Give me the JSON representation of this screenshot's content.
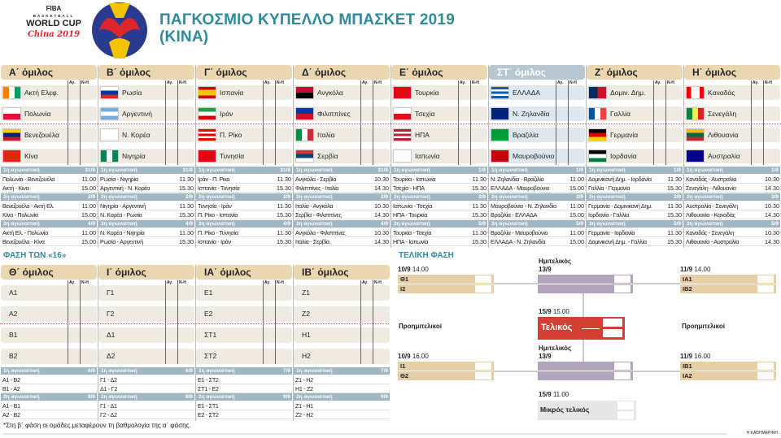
{
  "header": {
    "title_line1": "ΠΑΓΚΟΣΜΙΟ ΚΥΠΕΛΛΟ ΜΠΑΣΚΕΤ 2019",
    "title_line2": "(ΚΙΝΑ)",
    "logo": {
      "fiba": "FIBA",
      "basketball": "BASKETBALL",
      "world_cup": "WORLD CUP",
      "china": "China 2019"
    }
  },
  "colors": {
    "title": "#2f8a9a",
    "group_header": "#ead7b2",
    "schedule_header": "#9fb6c4",
    "final": "#d33f33",
    "semifinal": "#b2a4bc",
    "quarterfinal": "#e6cfa4"
  },
  "col_labels": {
    "wins": "Αγ.",
    "record": "Ν-Η"
  },
  "groups": [
    {
      "name": "Α΄ όμιλος",
      "teams": [
        {
          "name": "Ακτή Ελεφ.",
          "flag": {
            "dir": "v",
            "c": [
              "#f77f00",
              "#ffffff",
              "#009e60"
            ]
          }
        },
        {
          "name": "Πολωνία",
          "flag": {
            "dir": "h",
            "c": [
              "#ffffff",
              "#dc143c"
            ]
          }
        },
        {
          "name": "Βενεζουέλα",
          "flag": {
            "dir": "h",
            "c": [
              "#ffcc00",
              "#00247d",
              "#cf142b"
            ]
          }
        },
        {
          "name": "Κίνα",
          "flag": {
            "dir": "h",
            "c": [
              "#de2910"
            ]
          }
        }
      ],
      "rounds": [
        {
          "label": "1η αγωνιστική",
          "date": "31/8",
          "games": [
            [
              "Πολωνία - Βενεζουέλα",
              "11.00"
            ],
            [
              "Ακτή - Κίνα",
              "15.00"
            ]
          ]
        },
        {
          "label": "2η αγωνιστική",
          "date": "2/9",
          "games": [
            [
              "Βενεζουέλα - Ακτή Ελ.",
              "11.00"
            ],
            [
              "Κίνα - Πολωνία",
              "15.00"
            ]
          ]
        },
        {
          "label": "3η αγωνιστική",
          "date": "4/9",
          "games": [
            [
              "Ακτή Ελ. - Πολωνία",
              "11.00"
            ],
            [
              "Βενεζουέλα - Κίνα",
              "15.00"
            ]
          ]
        }
      ]
    },
    {
      "name": "Β΄ όμιλος",
      "teams": [
        {
          "name": "Ρωσία",
          "flag": {
            "dir": "h",
            "c": [
              "#ffffff",
              "#0039a6",
              "#d52b1e"
            ]
          }
        },
        {
          "name": "Αργεντινή",
          "flag": {
            "dir": "h",
            "c": [
              "#74acdf",
              "#ffffff",
              "#74acdf"
            ]
          }
        },
        {
          "name": "Ν. Κορέα",
          "flag": {
            "dir": "h",
            "c": [
              "#ffffff"
            ]
          }
        },
        {
          "name": "Νιγηρία",
          "flag": {
            "dir": "v",
            "c": [
              "#008751",
              "#ffffff",
              "#008751"
            ]
          }
        }
      ],
      "rounds": [
        {
          "label": "1η αγωνιστική",
          "date": "31/8",
          "games": [
            [
              "Ρωσία - Νιγηρία",
              "11.30"
            ],
            [
              "Αργεντινή - Ν. Κορέα",
              "15.30"
            ]
          ]
        },
        {
          "label": "2η αγωνιστική",
          "date": "2/9",
          "games": [
            [
              "Νιγηρία - Αργεντινή",
              "11.30"
            ],
            [
              "Ν. Κορέα - Ρωσία",
              "15.30"
            ]
          ]
        },
        {
          "label": "3η αγωνιστική",
          "date": "4/9",
          "games": [
            [
              "Ν. Κορέα - Νιγηρία",
              "11.30"
            ],
            [
              "Ρωσία - Αργεντινή",
              "15.30"
            ]
          ]
        }
      ]
    },
    {
      "name": "Γ΄ όμιλος",
      "teams": [
        {
          "name": "Ισπανία",
          "flag": {
            "dir": "h",
            "c": [
              "#c60b1e",
              "#ffc400",
              "#ffc400",
              "#c60b1e"
            ]
          }
        },
        {
          "name": "Ιράν",
          "flag": {
            "dir": "h",
            "c": [
              "#239f40",
              "#ffffff",
              "#da0000"
            ]
          }
        },
        {
          "name": "Π. Ρίκο",
          "flag": {
            "dir": "h",
            "c": [
              "#ed0000",
              "#ffffff",
              "#ed0000",
              "#ffffff",
              "#ed0000"
            ]
          }
        },
        {
          "name": "Τυνησία",
          "flag": {
            "dir": "h",
            "c": [
              "#e70013"
            ]
          }
        }
      ],
      "rounds": [
        {
          "label": "1η αγωνιστική",
          "date": "31/8",
          "games": [
            [
              "Ιράν - Π. Ρίκο",
              "11.30"
            ],
            [
              "Ισπανία - Τυνησία",
              "15.30"
            ]
          ]
        },
        {
          "label": "2η αγωνιστική",
          "date": "2/9",
          "games": [
            [
              "Τυνησία - Ιράν",
              "11.30"
            ],
            [
              "Π. Ρίκο - Ισπανία",
              "15.30"
            ]
          ]
        },
        {
          "label": "3η αγωνιστική",
          "date": "4/9",
          "games": [
            [
              "Π. Ρίκο - Τυνησία",
              "11.30"
            ],
            [
              "Ισπανία - Ιράν",
              "15.30"
            ]
          ]
        }
      ]
    },
    {
      "name": "Δ΄ όμιλος",
      "teams": [
        {
          "name": "Ανγκόλα",
          "flag": {
            "dir": "h",
            "c": [
              "#cc092f",
              "#000000"
            ]
          }
        },
        {
          "name": "Φιλιππίνες",
          "flag": {
            "dir": "h",
            "c": [
              "#0038a8",
              "#ce1126"
            ]
          }
        },
        {
          "name": "Ιταλία",
          "flag": {
            "dir": "v",
            "c": [
              "#009246",
              "#ffffff",
              "#ce2b37"
            ]
          }
        },
        {
          "name": "Σερβία",
          "flag": {
            "dir": "h",
            "c": [
              "#c6363c",
              "#0c4076",
              "#ffffff"
            ]
          }
        }
      ],
      "rounds": [
        {
          "label": "1η αγωνιστική",
          "date": "31/8",
          "games": [
            [
              "Ανγκόλα - Σερβία",
              "10.30"
            ],
            [
              "Φιλιππίνες - Ιταλία",
              "14.30"
            ]
          ]
        },
        {
          "label": "2η αγωνιστική",
          "date": "2/9",
          "games": [
            [
              "Ιταλία - Ανγκόλα",
              "10.30"
            ],
            [
              "Σερβία - Φιλιππίνες",
              "14.30"
            ]
          ]
        },
        {
          "label": "3η αγωνιστική",
          "date": "4/9",
          "games": [
            [
              "Ανγκόλα - Φιλιππίνες",
              "10.30"
            ],
            [
              "Ιταλία - Σερβία",
              "14.30"
            ]
          ]
        }
      ]
    },
    {
      "name": "Ε΄ όμιλος",
      "teams": [
        {
          "name": "Τουρκία",
          "flag": {
            "dir": "h",
            "c": [
              "#e30a17"
            ]
          }
        },
        {
          "name": "Τσεχία",
          "flag": {
            "dir": "h",
            "c": [
              "#ffffff",
              "#d7141a"
            ]
          }
        },
        {
          "name": "ΗΠΑ",
          "flag": {
            "dir": "h",
            "c": [
              "#b22234",
              "#ffffff",
              "#b22234",
              "#ffffff",
              "#b22234"
            ]
          }
        },
        {
          "name": "Ιαπωνία",
          "flag": {
            "dir": "h",
            "c": [
              "#ffffff"
            ]
          }
        }
      ],
      "rounds": [
        {
          "label": "1η αγωνιστική",
          "date": "1/9",
          "games": [
            [
              "Τουρκία - Ιαπωνία",
              "11.30"
            ],
            [
              "Τσεχία - ΗΠΑ",
              "15.30"
            ]
          ]
        },
        {
          "label": "2η αγωνιστική",
          "date": "3/9",
          "games": [
            [
              "Ιαπωνία - Τσεχία",
              "11.30"
            ],
            [
              "ΗΠΑ - Τουρκία",
              "15.30"
            ]
          ]
        },
        {
          "label": "3η αγωνιστική",
          "date": "5/9",
          "games": [
            [
              "Τουρκία - Τσεχία",
              "11.30"
            ],
            [
              "ΗΠΑ - Ιαπωνία",
              "15.30"
            ]
          ]
        }
      ]
    },
    {
      "name": "ΣΤ΄ όμιλος",
      "highlight": true,
      "teams": [
        {
          "name": "ΕΛΛΑΔΑ",
          "flag": {
            "dir": "h",
            "c": [
              "#0d5eaf",
              "#ffffff",
              "#0d5eaf",
              "#ffffff",
              "#0d5eaf"
            ]
          }
        },
        {
          "name": "Ν. Ζηλανδία",
          "flag": {
            "dir": "h",
            "c": [
              "#00247d"
            ]
          }
        },
        {
          "name": "Βραζιλία",
          "flag": {
            "dir": "h",
            "c": [
              "#009c3b"
            ]
          }
        },
        {
          "name": "Μαυροβούνιο",
          "flag": {
            "dir": "h",
            "c": [
              "#c40308"
            ]
          }
        }
      ],
      "rounds": [
        {
          "label": "1η αγωνιστική",
          "date": "1/9",
          "games": [
            [
              "Ν. Ζηλανδία - Βραζιλία",
              "11.00"
            ],
            [
              "ΕΛΛΑΔΑ - Μαυροβούνιο",
              "15.00"
            ]
          ]
        },
        {
          "label": "2η αγωνιστική",
          "date": "3/9",
          "games": [
            [
              "Μαυροβούνιο - Ν. Ζηλανδία",
              "11.00"
            ],
            [
              "Βραζιλία - ΕΛΛΑΔΑ",
              "15.00"
            ]
          ]
        },
        {
          "label": "3η αγωνιστική",
          "date": "5/9",
          "games": [
            [
              "Βραζιλία - Μαυροβούνιο",
              "11.00"
            ],
            [
              "ΕΛΛΑΔΑ - Ν. Ζηλανδία",
              "15.00"
            ]
          ]
        }
      ]
    },
    {
      "name": "Ζ΄ όμιλος",
      "teams": [
        {
          "name": "Δομιν. Δημ.",
          "flag": {
            "dir": "v",
            "c": [
              "#002d62",
              "#ce1126"
            ]
          }
        },
        {
          "name": "Γαλλία",
          "flag": {
            "dir": "v",
            "c": [
              "#0055a4",
              "#ffffff",
              "#ef4135"
            ]
          }
        },
        {
          "name": "Γερμανία",
          "flag": {
            "dir": "h",
            "c": [
              "#000000",
              "#dd0000",
              "#ffce00"
            ]
          }
        },
        {
          "name": "Ιορδανία",
          "flag": {
            "dir": "h",
            "c": [
              "#000000",
              "#ffffff",
              "#007a3d"
            ]
          }
        }
      ],
      "rounds": [
        {
          "label": "1η αγωνιστική",
          "date": "1/9",
          "games": [
            [
              "Δομινικανή Δημ. - Ιορδανία",
              "11.30"
            ],
            [
              "Γαλλία - Γερμανία",
              "15.30"
            ]
          ]
        },
        {
          "label": "2η αγωνιστική",
          "date": "3/9",
          "games": [
            [
              "Γερμανία - Δομινικανή Δημ.",
              "11.30"
            ],
            [
              "Ιορδανία - Γαλλία",
              "15.30"
            ]
          ]
        },
        {
          "label": "3η αγωνιστική",
          "date": "5/9",
          "games": [
            [
              "Γερμανία - Ιορδανία",
              "11.30"
            ],
            [
              "Δομινικανή Δημ. - Γαλλία",
              "15.30"
            ]
          ]
        }
      ]
    },
    {
      "name": "Η΄ όμιλος",
      "teams": [
        {
          "name": "Καναδάς",
          "flag": {
            "dir": "v",
            "c": [
              "#ff0000",
              "#ffffff",
              "#ffffff",
              "#ff0000"
            ]
          }
        },
        {
          "name": "Σενεγάλη",
          "flag": {
            "dir": "v",
            "c": [
              "#00853f",
              "#fdef42",
              "#e31b23"
            ]
          }
        },
        {
          "name": "Λιθουανία",
          "flag": {
            "dir": "h",
            "c": [
              "#fdb913",
              "#006a44",
              "#c1272d"
            ]
          }
        },
        {
          "name": "Αυστραλία",
          "flag": {
            "dir": "h",
            "c": [
              "#00008b"
            ]
          }
        }
      ],
      "rounds": [
        {
          "label": "1η αγωνιστική",
          "date": "1/9",
          "games": [
            [
              "Καναδάς - Αυστραλία",
              "10.30"
            ],
            [
              "Σενεγάλη - Λιθουανία",
              "14.30"
            ]
          ]
        },
        {
          "label": "2η αγωνιστική",
          "date": "3/9",
          "games": [
            [
              "Αυστραλία - Σενεγάλη",
              "10.30"
            ],
            [
              "Λιθουανία - Καναδάς",
              "14.30"
            ]
          ]
        },
        {
          "label": "3η αγωνιστική",
          "date": "5/9",
          "games": [
            [
              "Καναδάς - Σενεγάλη",
              "10.30"
            ],
            [
              "Λιθουανία - Αυστραλία",
              "14.30"
            ]
          ]
        }
      ]
    }
  ],
  "second_phase": {
    "title": "ΦΑΣΗ ΤΩΝ «16»",
    "groups": [
      {
        "name": "Θ΄ όμιλος",
        "teams": [
          "Α1",
          "Α2",
          "Β1",
          "Β2"
        ],
        "rounds": [
          {
            "label": "1η αγωνιστική",
            "date": "6/9",
            "games": [
              "Α1 - Β2",
              "Β1 - Α2"
            ]
          },
          {
            "label": "2η αγωνιστική",
            "date": "8/9",
            "games": [
              "Α1 - Β1",
              "Α2 - Β2"
            ]
          }
        ]
      },
      {
        "name": "Ι΄ όμιλος",
        "teams": [
          "Γ1",
          "Γ2",
          "Δ1",
          "Δ2"
        ],
        "rounds": [
          {
            "label": "1η αγωνιστική",
            "date": "6/9",
            "games": [
              "Γ1 - Δ2",
              "Δ1 - Γ2"
            ]
          },
          {
            "label": "2η αγωνιστική",
            "date": "8/9",
            "games": [
              "Γ1 - Δ1",
              "Γ2 - Δ2"
            ]
          }
        ]
      },
      {
        "name": "ΙΑ΄ όμιλος",
        "teams": [
          "Ε1",
          "Ε2",
          "ΣΤ1",
          "ΣΤ2"
        ],
        "rounds": [
          {
            "label": "1η αγωνιστική",
            "date": "7/9",
            "games": [
              "Ε1 - ΣΤ2",
              "ΣΤ1 - Ε2"
            ]
          },
          {
            "label": "2η αγωνιστική",
            "date": "9/9",
            "games": [
              "Ε1 - ΣΤ1",
              "Ε2 - ΣΤ2"
            ]
          }
        ]
      },
      {
        "name": "ΙΒ΄ όμιλος",
        "teams": [
          "Ζ1",
          "Ζ2",
          "Η1",
          "Η2"
        ],
        "rounds": [
          {
            "label": "1η αγωνιστική",
            "date": "7/9",
            "games": [
              "Ζ1 - Η2",
              "Η1 - Ζ2"
            ]
          },
          {
            "label": "2η αγωνιστική",
            "date": "9/9",
            "games": [
              "Ζ1 - Η1",
              "Ζ2 - Η2"
            ]
          }
        ]
      }
    ],
    "note": "*Στη β΄ φάση οι ομάδες μεταφέρουν τη βαθμολογία της α΄ φάσης."
  },
  "final_phase": {
    "title": "ΤΕΛΙΚΗ ΦΑΣΗ",
    "quarterfinals_label": "Προημιτελικοί",
    "qf": [
      {
        "date": "10/9",
        "time": "14.00",
        "teams": [
          "Θ1",
          "Ι2"
        ]
      },
      {
        "date": "11/9",
        "time": "14.00",
        "teams": [
          "ΙΑ1",
          "ΙΒ2"
        ]
      },
      {
        "date": "10/9",
        "time": "16.00",
        "teams": [
          "Ι1",
          "Θ2"
        ]
      },
      {
        "date": "11/9",
        "time": "16.00",
        "teams": [
          "ΙΒ1",
          "ΙΑ2"
        ]
      }
    ],
    "semifinal": {
      "label": "Ημιτελικός",
      "date": "13/9"
    },
    "final": {
      "label": "Τελικός",
      "date": "15/9",
      "time": "15.00"
    },
    "third_place": {
      "label": "Μικρός τελικός",
      "date": "15/9",
      "time": "11.00"
    }
  },
  "credit": "Η ΚΑΘΗΜΕΡΙΝΗ"
}
